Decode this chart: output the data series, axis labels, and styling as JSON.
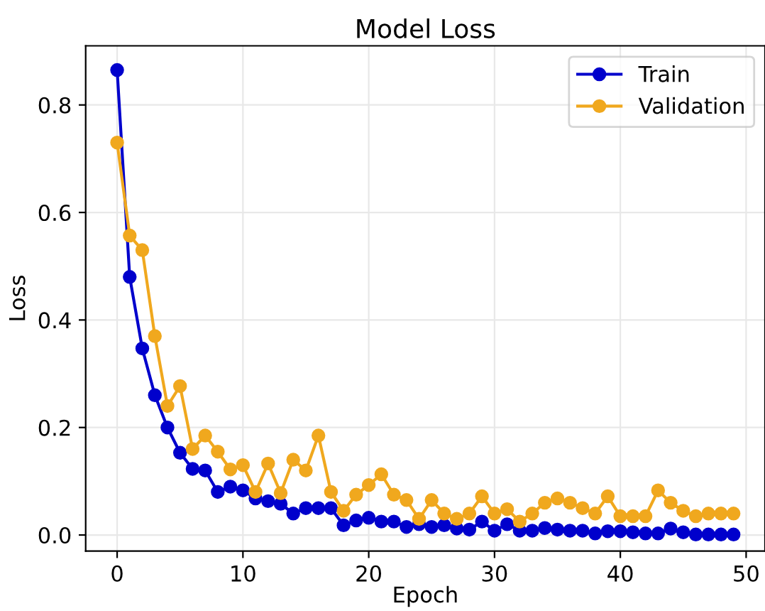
{
  "chart_data": {
    "type": "line",
    "title": "Model Loss",
    "xlabel": "Epoch",
    "ylabel": "Loss",
    "x": [
      0,
      1,
      2,
      3,
      4,
      5,
      6,
      7,
      8,
      9,
      10,
      11,
      12,
      13,
      14,
      15,
      16,
      17,
      18,
      19,
      20,
      21,
      22,
      23,
      24,
      25,
      26,
      27,
      28,
      29,
      30,
      31,
      32,
      33,
      34,
      35,
      36,
      37,
      38,
      39,
      40,
      41,
      42,
      43,
      44,
      45,
      46,
      47,
      48,
      49
    ],
    "series": [
      {
        "name": "Train",
        "color": "#0000cc",
        "values": [
          0.865,
          0.48,
          0.347,
          0.26,
          0.2,
          0.153,
          0.123,
          0.12,
          0.08,
          0.09,
          0.083,
          0.068,
          0.063,
          0.058,
          0.04,
          0.05,
          0.05,
          0.05,
          0.018,
          0.027,
          0.032,
          0.025,
          0.025,
          0.015,
          0.02,
          0.015,
          0.018,
          0.012,
          0.01,
          0.025,
          0.008,
          0.02,
          0.008,
          0.008,
          0.013,
          0.01,
          0.008,
          0.008,
          0.003,
          0.007,
          0.007,
          0.005,
          0.003,
          0.003,
          0.012,
          0.005,
          0.001,
          0.001,
          0.001,
          0.001
        ]
      },
      {
        "name": "Validation",
        "color": "#f0a81e",
        "values": [
          0.73,
          0.557,
          0.53,
          0.37,
          0.24,
          0.277,
          0.16,
          0.185,
          0.155,
          0.122,
          0.13,
          0.08,
          0.133,
          0.078,
          0.14,
          0.12,
          0.185,
          0.08,
          0.045,
          0.075,
          0.093,
          0.113,
          0.075,
          0.065,
          0.03,
          0.065,
          0.04,
          0.03,
          0.04,
          0.072,
          0.04,
          0.048,
          0.025,
          0.04,
          0.06,
          0.068,
          0.06,
          0.05,
          0.04,
          0.072,
          0.035,
          0.035,
          0.035,
          0.083,
          0.06,
          0.045,
          0.035,
          0.04,
          0.04,
          0.04
        ]
      }
    ],
    "xlim": [
      -2.5,
      51.5
    ],
    "ylim": [
      -0.03,
      0.91
    ],
    "xticks": [
      0,
      10,
      20,
      30,
      40,
      50
    ],
    "yticks": [
      {
        "value": 0,
        "label": "0.0"
      },
      0.2,
      0.4,
      0.6,
      0.8
    ],
    "grid": true,
    "legend": "top right",
    "marker": "circle",
    "line_style": "solid"
  }
}
